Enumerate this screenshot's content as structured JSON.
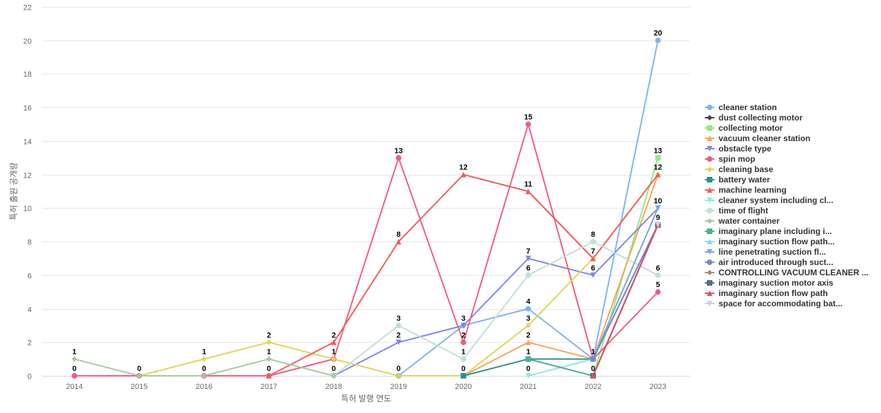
{
  "chart_data": {
    "type": "line",
    "title": "",
    "xlabel": "특허 발행 연도",
    "ylabel": "특허 출원 공개량",
    "x": [
      "2014",
      "2015",
      "2016",
      "2017",
      "2018",
      "2019",
      "2020",
      "2021",
      "2022",
      "2023"
    ],
    "ylim": [
      0,
      22
    ],
    "yticks": [
      0,
      2,
      4,
      6,
      8,
      10,
      12,
      14,
      16,
      18,
      20,
      22
    ],
    "grid": true,
    "legend": "right",
    "series": [
      {
        "name": "cleaner station",
        "color": "#7cb5ec",
        "marker": "circle",
        "values": [
          null,
          null,
          null,
          null,
          null,
          0,
          3,
          4,
          1,
          20
        ]
      },
      {
        "name": "dust collecting motor",
        "color": "#434348",
        "marker": "diamond",
        "values": [
          null,
          null,
          null,
          null,
          null,
          null,
          null,
          null,
          0,
          9
        ]
      },
      {
        "name": "collecting motor",
        "color": "#90ed7d",
        "marker": "square",
        "values": [
          null,
          null,
          null,
          null,
          null,
          null,
          null,
          null,
          0,
          13
        ]
      },
      {
        "name": "vacuum cleaner station",
        "color": "#f7a35c",
        "marker": "triangle",
        "values": [
          null,
          null,
          null,
          null,
          null,
          null,
          0,
          2,
          1,
          12
        ]
      },
      {
        "name": "obstacle type",
        "color": "#8085e9",
        "marker": "triangle-down",
        "values": [
          null,
          null,
          null,
          null,
          0,
          2,
          3,
          7,
          6,
          10
        ]
      },
      {
        "name": "spin mop",
        "color": "#f15c80",
        "marker": "circle",
        "values": [
          0,
          0,
          0,
          0,
          1,
          13,
          2,
          15,
          1,
          5
        ]
      },
      {
        "name": "cleaning base",
        "color": "#e4d354",
        "marker": "diamond",
        "values": [
          null,
          0,
          1,
          2,
          1,
          0,
          0,
          3,
          7,
          12
        ]
      },
      {
        "name": "battery water",
        "color": "#2b908f",
        "marker": "square",
        "values": [
          null,
          null,
          null,
          null,
          null,
          null,
          0,
          1,
          1,
          9
        ]
      },
      {
        "name": "machine learning",
        "color": "#f45b5b",
        "marker": "triangle",
        "values": [
          null,
          null,
          null,
          0,
          2,
          8,
          12,
          11,
          7,
          12
        ]
      },
      {
        "name": "cleaner system including cl...",
        "color": "#91e8e1",
        "marker": "triangle-down",
        "values": [
          null,
          null,
          null,
          null,
          null,
          null,
          null,
          0,
          1,
          10
        ]
      },
      {
        "name": "time of flight",
        "color": "#bfe0d5",
        "marker": "circle",
        "values": [
          null,
          null,
          null,
          null,
          0,
          3,
          1,
          6,
          8,
          6
        ]
      },
      {
        "name": "water container",
        "color": "#a9c8a0",
        "marker": "diamond",
        "values": [
          1,
          0,
          0,
          1,
          0,
          null,
          null,
          null,
          null,
          null
        ]
      },
      {
        "name": "imaginary plane including i...",
        "color": "#4caf8f",
        "marker": "square",
        "values": [
          null,
          null,
          null,
          null,
          null,
          null,
          null,
          1,
          0,
          9
        ]
      },
      {
        "name": "imaginary suction flow path...",
        "color": "#80deea",
        "marker": "triangle",
        "values": [
          null,
          null,
          null,
          null,
          null,
          null,
          null,
          null,
          1,
          9
        ]
      },
      {
        "name": "line penetrating suction fl...",
        "color": "#7fa7d6",
        "marker": "triangle-down",
        "values": [
          null,
          null,
          null,
          null,
          null,
          null,
          null,
          null,
          1,
          10
        ]
      },
      {
        "name": "air introduced through suct...",
        "color": "#7986cb",
        "marker": "circle",
        "values": [
          null,
          null,
          null,
          null,
          null,
          null,
          null,
          null,
          1,
          9
        ]
      },
      {
        "name": "CONTROLLING VACUUM CLEANER ...",
        "color": "#b08a6e",
        "marker": "diamond",
        "values": [
          null,
          null,
          null,
          null,
          null,
          null,
          null,
          null,
          0,
          9
        ]
      },
      {
        "name": "imaginary suction motor axis",
        "color": "#4f6d8a",
        "marker": "square",
        "values": [
          null,
          null,
          null,
          null,
          null,
          null,
          null,
          null,
          0,
          9
        ]
      },
      {
        "name": "imaginary suction flow path",
        "color": "#e05060",
        "marker": "triangle",
        "values": [
          null,
          null,
          null,
          null,
          null,
          null,
          null,
          null,
          0,
          9
        ]
      },
      {
        "name": "space for accommodating bat...",
        "color": "#d9c7e8",
        "marker": "triangle-down",
        "values": [
          null,
          null,
          null,
          null,
          null,
          null,
          null,
          null,
          null,
          9
        ]
      }
    ],
    "data_labels": [
      {
        "x": "2014",
        "value": 1
      },
      {
        "x": "2014",
        "value": 0
      },
      {
        "x": "2015",
        "value": 0
      },
      {
        "x": "2016",
        "value": 1
      },
      {
        "x": "2016",
        "value": 0
      },
      {
        "x": "2017",
        "value": 2
      },
      {
        "x": "2017",
        "value": 1
      },
      {
        "x": "2017",
        "value": 0
      },
      {
        "x": "2018",
        "value": 2
      },
      {
        "x": "2018",
        "value": 1
      },
      {
        "x": "2018",
        "value": 0
      },
      {
        "x": "2019",
        "value": 13
      },
      {
        "x": "2019",
        "value": 8
      },
      {
        "x": "2019",
        "value": 3
      },
      {
        "x": "2019",
        "value": 2
      },
      {
        "x": "2019",
        "value": 0
      },
      {
        "x": "2020",
        "value": 12
      },
      {
        "x": "2020",
        "value": 3
      },
      {
        "x": "2020",
        "value": 2
      },
      {
        "x": "2020",
        "value": 1
      },
      {
        "x": "2020",
        "value": 0
      },
      {
        "x": "2021",
        "value": 15
      },
      {
        "x": "2021",
        "value": 11
      },
      {
        "x": "2021",
        "value": 7
      },
      {
        "x": "2021",
        "value": 6
      },
      {
        "x": "2021",
        "value": 4
      },
      {
        "x": "2021",
        "value": 3
      },
      {
        "x": "2021",
        "value": 2
      },
      {
        "x": "2021",
        "value": 1
      },
      {
        "x": "2021",
        "value": 0
      },
      {
        "x": "2022",
        "value": 8
      },
      {
        "x": "2022",
        "value": 7
      },
      {
        "x": "2022",
        "value": 6
      },
      {
        "x": "2022",
        "value": 1
      },
      {
        "x": "2022",
        "value": 0
      },
      {
        "x": "2023",
        "value": 20
      },
      {
        "x": "2023",
        "value": 13
      },
      {
        "x": "2023",
        "value": 12
      },
      {
        "x": "2023",
        "value": 10
      },
      {
        "x": "2023",
        "value": 9
      },
      {
        "x": "2023",
        "value": 6
      },
      {
        "x": "2023",
        "value": 5
      }
    ]
  }
}
